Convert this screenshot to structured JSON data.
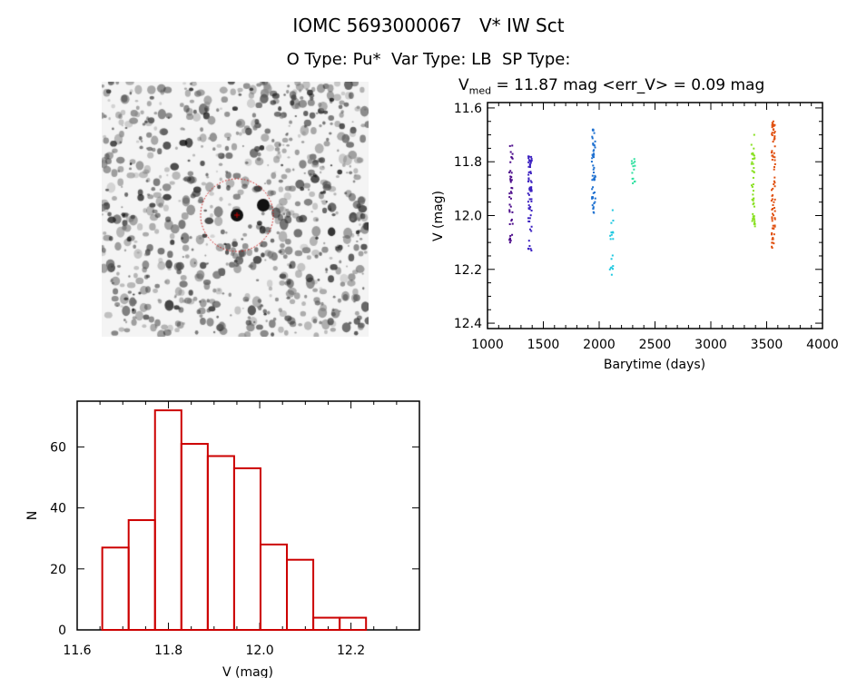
{
  "header": {
    "title": "IOMC 5693000067   V* IW Sct",
    "subtitle": "O Type: Pu*  Var Type: LB  SP Type:",
    "stats_prefix": "V",
    "stats_sub": "med",
    "stats_rest": " = 11.87 mag <err_V> = 0.09 mag"
  },
  "chart_data": [
    {
      "type": "scatter",
      "title": "V_med = 11.87 mag <err_V> = 0.09 mag",
      "xlabel": "Barytime (days)",
      "ylabel": "V (mag)",
      "xlim": [
        1000,
        4000
      ],
      "ylim": [
        12.42,
        11.58
      ],
      "xticks": [
        "1000",
        "1500",
        "2000",
        "2500",
        "3000",
        "3500",
        "4000"
      ],
      "yticks": [
        "11.6",
        "11.8",
        "12.0",
        "12.2",
        "12.4"
      ],
      "series": [
        {
          "x": 1210,
          "vmin": 11.74,
          "vmax": 12.1,
          "n": 40,
          "color": "#4b0a8a"
        },
        {
          "x": 1380,
          "vmin": 11.78,
          "vmax": 12.13,
          "n": 60,
          "color": "#3a1fc0"
        },
        {
          "x": 1950,
          "vmin": 11.68,
          "vmax": 11.99,
          "n": 55,
          "color": "#1e70d0"
        },
        {
          "x": 2110,
          "vmin": 11.98,
          "vmax": 12.22,
          "n": 18,
          "color": "#20c8e0"
        },
        {
          "x": 2305,
          "vmin": 11.79,
          "vmax": 11.88,
          "n": 14,
          "color": "#30e0a0"
        },
        {
          "x": 3380,
          "vmin": 11.7,
          "vmax": 12.04,
          "n": 45,
          "color": "#88e020"
        },
        {
          "x": 3560,
          "vmin": 11.65,
          "vmax": 12.12,
          "n": 80,
          "color": "#e05010"
        }
      ]
    },
    {
      "type": "bar",
      "xlabel": "V (mag)",
      "ylabel": "N",
      "xlim": [
        11.6,
        12.35
      ],
      "ylim": [
        0,
        75
      ],
      "xticks": [
        "11.6",
        "11.8",
        "12.0",
        "12.2"
      ],
      "yticks": [
        "0",
        "20",
        "40",
        "60"
      ],
      "bin_start": 11.655,
      "bin_width": 0.0578,
      "values": [
        27,
        36,
        72,
        61,
        57,
        53,
        28,
        23,
        4,
        4
      ],
      "color": "#cc0000"
    }
  ],
  "sky_image": {
    "marker_color": "#cc0000"
  }
}
